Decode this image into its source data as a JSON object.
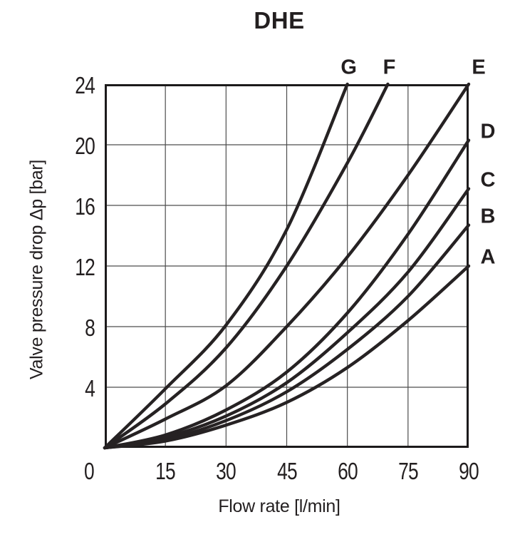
{
  "title": "DHE",
  "colors": {
    "background": "#ffffff",
    "curve": "#262223",
    "grid": "#4d4d4d",
    "frame": "#1c1a1b",
    "text": "#231f20"
  },
  "chart_data": {
    "type": "line",
    "title": "DHE",
    "xlabel": "Flow rate [l/min]",
    "ylabel": "Valve pressure drop Δp [bar]",
    "x_unit": "l/min",
    "y_unit": "bar",
    "xlim": [
      0,
      90
    ],
    "ylim": [
      0,
      24
    ],
    "x_ticks": [
      0,
      15,
      30,
      45,
      60,
      75,
      90
    ],
    "y_ticks": [
      4,
      8,
      12,
      16,
      20,
      24
    ],
    "grid": true,
    "legend_position": "labels-at-curve-ends",
    "series": [
      {
        "name": "A",
        "label_side": "right",
        "points": [
          [
            0,
            0
          ],
          [
            15,
            0.45
          ],
          [
            30,
            1.5
          ],
          [
            45,
            3.0
          ],
          [
            60,
            5.3
          ],
          [
            75,
            8.4
          ],
          [
            90,
            12.0
          ]
        ]
      },
      {
        "name": "B",
        "label_side": "right",
        "points": [
          [
            0,
            0
          ],
          [
            15,
            0.55
          ],
          [
            30,
            1.8
          ],
          [
            45,
            3.7
          ],
          [
            60,
            6.5
          ],
          [
            75,
            10.0
          ],
          [
            90,
            14.7
          ]
        ]
      },
      {
        "name": "C",
        "label_side": "right",
        "points": [
          [
            0,
            0
          ],
          [
            15,
            0.7
          ],
          [
            30,
            2.1
          ],
          [
            45,
            4.3
          ],
          [
            60,
            7.6
          ],
          [
            75,
            11.6
          ],
          [
            90,
            17.1
          ]
        ]
      },
      {
        "name": "D",
        "label_side": "right",
        "points": [
          [
            0,
            0
          ],
          [
            15,
            0.85
          ],
          [
            30,
            2.5
          ],
          [
            45,
            5.0
          ],
          [
            60,
            8.9
          ],
          [
            75,
            14.1
          ],
          [
            90,
            20.3
          ]
        ]
      },
      {
        "name": "E",
        "label_side": "top",
        "points": [
          [
            0,
            0
          ],
          [
            15,
            1.9
          ],
          [
            30,
            4.1
          ],
          [
            45,
            8.0
          ],
          [
            60,
            12.6
          ],
          [
            75,
            18.0
          ],
          [
            90,
            24.0
          ]
        ]
      },
      {
        "name": "F",
        "label_side": "top",
        "points": [
          [
            0,
            0
          ],
          [
            15,
            2.9
          ],
          [
            30,
            6.6
          ],
          [
            45,
            12.0
          ],
          [
            60,
            18.8
          ],
          [
            70,
            24.0
          ]
        ]
      },
      {
        "name": "G",
        "label_side": "top",
        "points": [
          [
            0,
            0
          ],
          [
            15,
            3.9
          ],
          [
            30,
            8.1
          ],
          [
            45,
            14.4
          ],
          [
            60,
            24.0
          ]
        ]
      }
    ]
  }
}
